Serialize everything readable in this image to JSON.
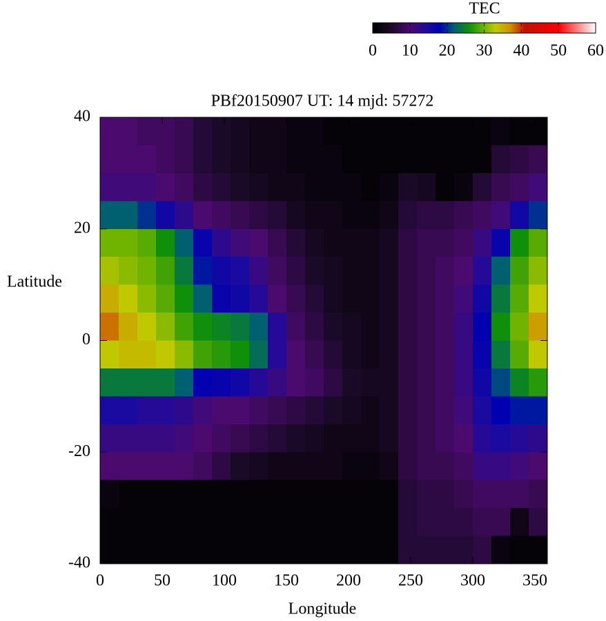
{
  "chart_data": {
    "type": "heatmap",
    "title": "PBf20150907  UT: 14  mjd: 57272",
    "x_label": "Longitude",
    "y_label": "Latitude",
    "xlim": [
      0,
      360
    ],
    "ylim": [
      -40,
      40
    ],
    "xticks": [
      0,
      50,
      100,
      150,
      200,
      250,
      300,
      350
    ],
    "yticks": [
      -40,
      -20,
      0,
      20,
      40
    ],
    "xbins": [
      0,
      15,
      30,
      45,
      60,
      75,
      90,
      105,
      120,
      135,
      150,
      165,
      180,
      195,
      210,
      225,
      240,
      255,
      270,
      285,
      300,
      315,
      330,
      345,
      360
    ],
    "ybins": [
      40,
      35,
      30,
      25,
      20,
      15,
      10,
      5,
      0,
      -5,
      -10,
      -15,
      -20,
      -25,
      -30,
      -35,
      -40
    ],
    "z": [
      [
        10,
        10,
        9,
        9,
        8,
        6,
        5,
        4,
        3,
        3,
        2,
        2,
        1,
        1,
        1,
        1,
        1,
        1,
        1,
        1,
        1,
        2,
        1,
        1
      ],
      [
        10,
        10,
        10,
        9,
        8,
        6,
        5,
        4,
        3,
        3,
        2,
        2,
        2,
        1,
        1,
        1,
        1,
        1,
        1,
        1,
        1,
        6,
        7,
        8
      ],
      [
        11,
        11,
        11,
        10,
        9,
        7,
        6,
        5,
        4,
        3,
        3,
        2,
        2,
        2,
        1,
        2,
        5,
        4,
        1,
        2,
        6,
        8,
        9,
        11
      ],
      [
        22,
        22,
        20,
        16,
        13,
        10,
        9,
        8,
        7,
        6,
        4,
        3,
        3,
        2,
        2,
        3,
        6,
        7,
        7,
        8,
        9,
        11,
        16,
        20
      ],
      [
        30,
        30,
        29,
        26,
        22,
        17,
        13,
        11,
        10,
        8,
        6,
        4,
        3,
        3,
        3,
        4,
        7,
        8,
        8,
        9,
        12,
        17,
        26,
        29
      ],
      [
        32,
        31,
        30,
        28,
        24,
        19,
        16,
        15,
        12,
        9,
        7,
        5,
        4,
        3,
        3,
        4,
        7,
        8,
        9,
        10,
        14,
        22,
        28,
        31
      ],
      [
        35,
        33,
        31,
        29,
        26,
        22,
        17,
        16,
        14,
        10,
        8,
        6,
        4,
        3,
        3,
        4,
        7,
        8,
        9,
        11,
        16,
        24,
        29,
        33
      ],
      [
        38,
        35,
        33,
        31,
        28,
        26,
        25,
        24,
        22,
        14,
        9,
        7,
        5,
        4,
        3,
        4,
        7,
        8,
        9,
        12,
        18,
        26,
        30,
        36
      ],
      [
        33,
        34,
        34,
        33,
        31,
        28,
        27,
        26,
        23,
        14,
        10,
        8,
        6,
        4,
        3,
        4,
        7,
        8,
        9,
        12,
        17,
        24,
        29,
        33
      ],
      [
        24,
        24,
        24,
        24,
        22,
        18,
        17,
        16,
        14,
        12,
        10,
        9,
        7,
        5,
        4,
        4,
        7,
        8,
        9,
        12,
        16,
        21,
        25,
        27
      ],
      [
        15,
        15,
        14,
        14,
        13,
        11,
        10,
        10,
        9,
        8,
        7,
        6,
        5,
        4,
        3,
        4,
        7,
        8,
        9,
        11,
        15,
        18,
        19,
        19
      ],
      [
        12,
        12,
        12,
        12,
        11,
        10,
        9,
        8,
        7,
        6,
        5,
        4,
        3,
        3,
        3,
        4,
        7,
        8,
        9,
        10,
        14,
        15,
        14,
        13
      ],
      [
        10,
        10,
        10,
        10,
        10,
        9,
        7,
        5,
        4,
        3,
        3,
        3,
        3,
        2,
        2,
        3,
        7,
        8,
        8,
        9,
        12,
        12,
        11,
        10
      ],
      [
        2,
        1,
        1,
        1,
        1,
        1,
        1,
        1,
        1,
        1,
        1,
        1,
        1,
        1,
        1,
        1,
        6,
        7,
        7,
        8,
        9,
        9,
        9,
        8
      ],
      [
        1,
        1,
        1,
        1,
        1,
        1,
        1,
        1,
        1,
        1,
        1,
        1,
        1,
        1,
        1,
        1,
        6,
        7,
        7,
        7,
        8,
        8,
        3,
        7
      ],
      [
        1,
        1,
        1,
        1,
        1,
        1,
        1,
        1,
        1,
        1,
        1,
        1,
        1,
        1,
        1,
        1,
        6,
        6,
        6,
        6,
        7,
        2,
        1,
        1
      ]
    ],
    "colorbar": {
      "title": "TEC",
      "lim": [
        0,
        60
      ],
      "ticks": [
        0,
        10,
        20,
        30,
        40,
        50,
        60
      ]
    },
    "colormap": [
      {
        "value": 0,
        "color": "#000000"
      },
      {
        "value": 5,
        "color": "#1a0a28"
      },
      {
        "value": 10,
        "color": "#4a0a6e"
      },
      {
        "value": 15,
        "color": "#1a0aa0"
      },
      {
        "value": 18,
        "color": "#0000b0"
      },
      {
        "value": 22,
        "color": "#006070"
      },
      {
        "value": 26,
        "color": "#10900a"
      },
      {
        "value": 30,
        "color": "#70b400"
      },
      {
        "value": 33,
        "color": "#c0c800"
      },
      {
        "value": 37,
        "color": "#d09000"
      },
      {
        "value": 41,
        "color": "#c01000"
      },
      {
        "value": 50,
        "color": "#ff0000"
      },
      {
        "value": 60,
        "color": "#ffffff"
      }
    ]
  }
}
